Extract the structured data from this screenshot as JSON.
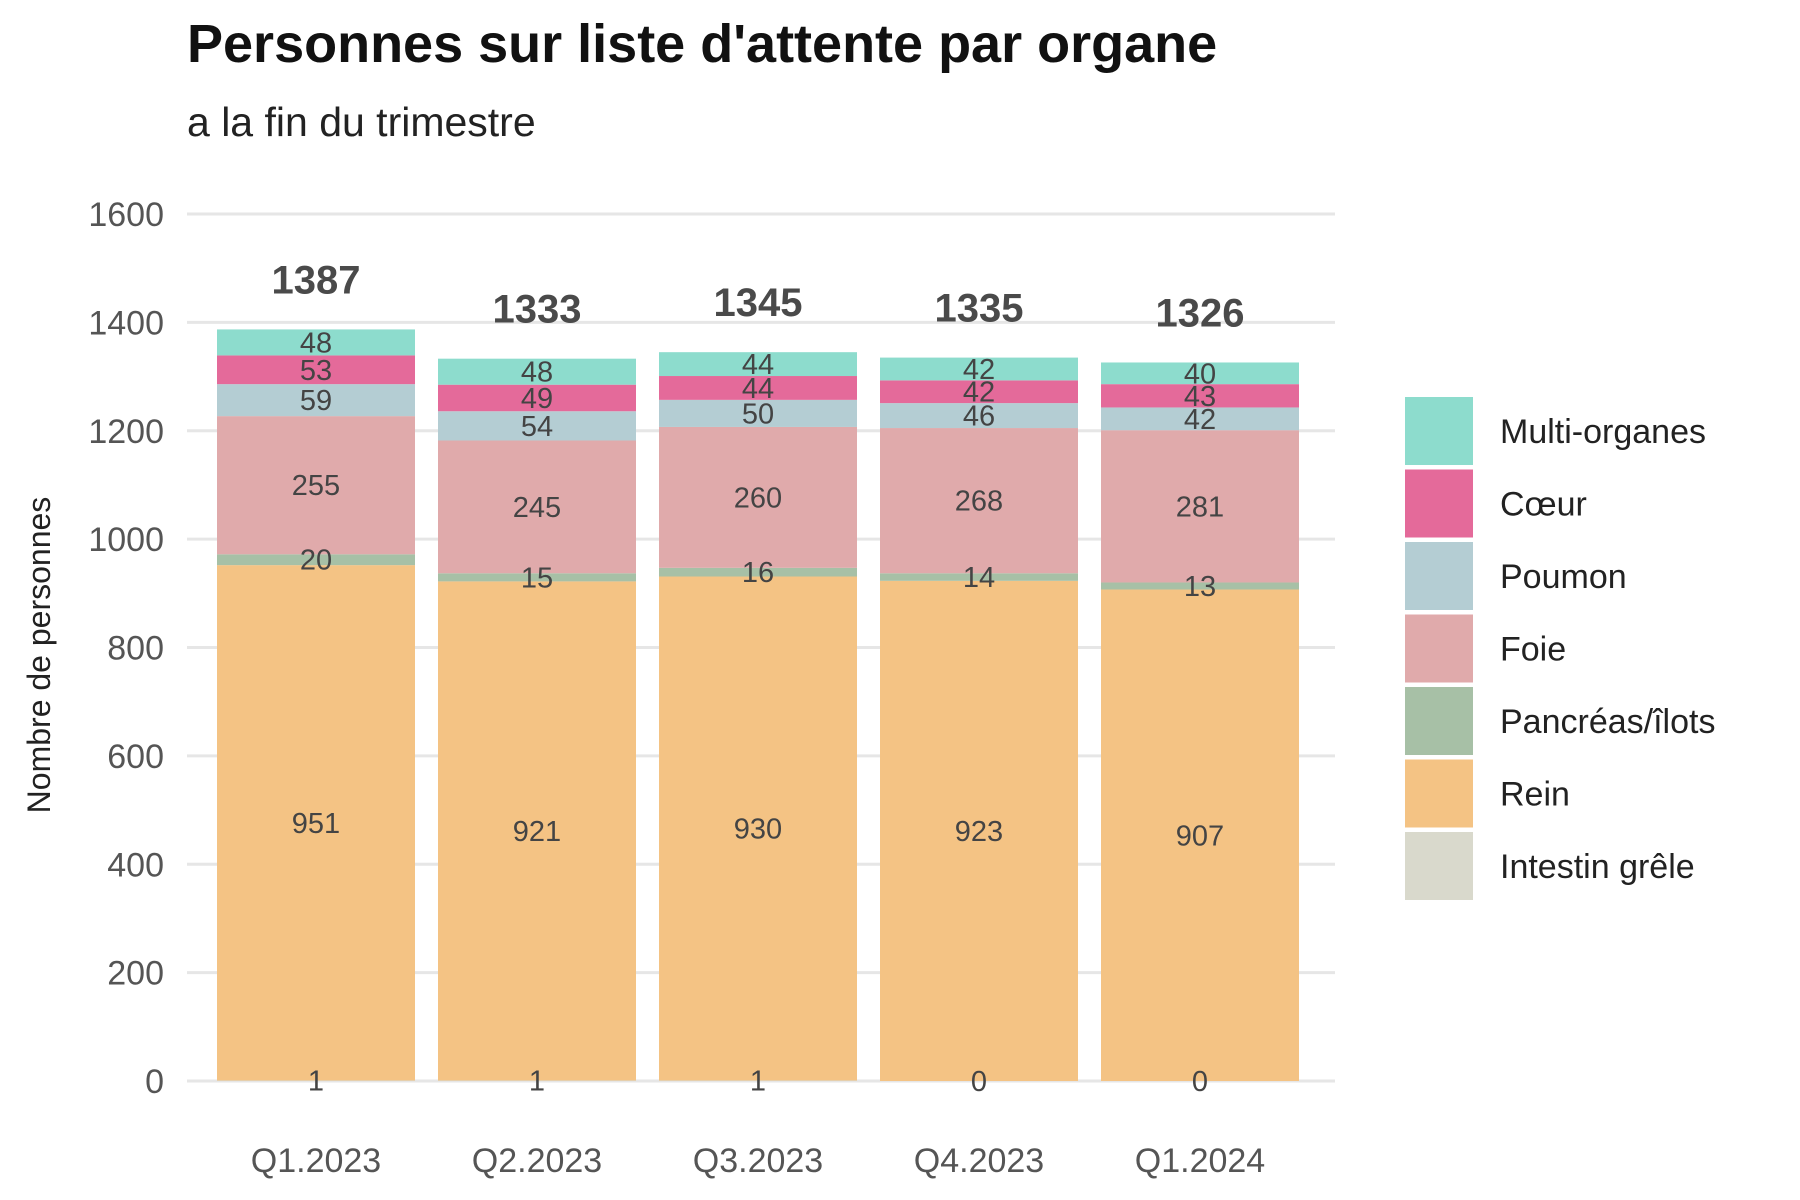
{
  "chart_data": {
    "type": "bar",
    "stacked": true,
    "title": "Personnes sur liste d'attente par organe",
    "subtitle": "a la fin du trimestre",
    "ylabel": "Nombre de personnes",
    "xlabel": "",
    "ylim": [
      0,
      1600
    ],
    "yticks": [
      0,
      200,
      400,
      600,
      800,
      1000,
      1200,
      1400,
      1600
    ],
    "grid": true,
    "legend_position": "right",
    "categories": [
      "Q1.2023",
      "Q2.2023",
      "Q3.2023",
      "Q4.2023",
      "Q1.2024"
    ],
    "totals": [
      1387,
      1333,
      1345,
      1335,
      1326
    ],
    "series": [
      {
        "name": "Intestin grêle",
        "color": "#d9d9cc",
        "values": [
          1,
          1,
          1,
          0,
          0
        ]
      },
      {
        "name": "Rein",
        "color": "#f4c384",
        "values": [
          951,
          921,
          930,
          923,
          907
        ]
      },
      {
        "name": "Pancréas/îlots",
        "color": "#a7c0a6",
        "values": [
          20,
          15,
          16,
          14,
          13
        ]
      },
      {
        "name": "Foie",
        "color": "#e0aaab",
        "values": [
          255,
          245,
          260,
          268,
          281
        ]
      },
      {
        "name": "Poumon",
        "color": "#b4cdd3",
        "values": [
          59,
          54,
          50,
          46,
          42
        ]
      },
      {
        "name": "Cœur",
        "color": "#e46a9a",
        "values": [
          53,
          49,
          44,
          42,
          43
        ]
      },
      {
        "name": "Multi-organes",
        "color": "#8ddccd",
        "values": [
          48,
          48,
          44,
          42,
          40
        ]
      }
    ],
    "legend_order": [
      "Multi-organes",
      "Cœur",
      "Poumon",
      "Foie",
      "Pancréas/îlots",
      "Rein",
      "Intestin grêle"
    ]
  }
}
